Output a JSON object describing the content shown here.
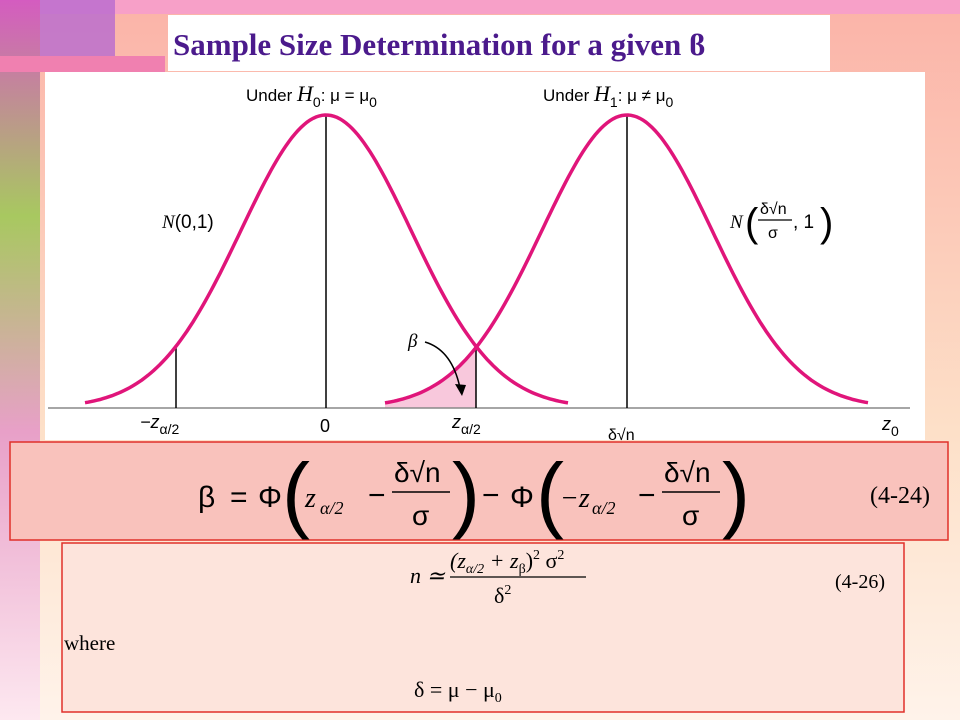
{
  "title": "Sample Size Determination for a given ϐ",
  "figure": {
    "h0_label": [
      "Under ",
      "H",
      "0",
      ": μ = μ",
      "0"
    ],
    "h1_label": [
      "Under ",
      "H",
      "1",
      ": μ ≠ μ",
      "0"
    ],
    "n01_label": [
      "N",
      "(0,1)"
    ],
    "n1_label": [
      "N",
      "δ√n",
      "σ",
      ", 1"
    ],
    "beta_label": "β",
    "axis_labels": {
      "minus_z": [
        "−z",
        "α/2"
      ],
      "zero": "0",
      "plus_z": [
        "z",
        "α/2"
      ],
      "delta": "δ√n",
      "z0": [
        "z",
        "0"
      ]
    }
  },
  "equation_1": {
    "parts": [
      "β",
      "=",
      "Φ",
      "z",
      "α/2",
      "−",
      "δ√n",
      "σ",
      "−",
      "Φ",
      "−z",
      "α/2",
      "−",
      "δ√n",
      "σ"
    ],
    "number": "(4-24)"
  },
  "equation_2": {
    "lhs": "n ≃",
    "numerator": [
      "(z",
      "α/2",
      " + z",
      "β",
      ")",
      "2",
      " σ",
      "2"
    ],
    "denominator": [
      "δ",
      "2"
    ],
    "number": "(4-26)",
    "where": "where",
    "definition": [
      "δ = μ − μ",
      "0"
    ]
  }
}
